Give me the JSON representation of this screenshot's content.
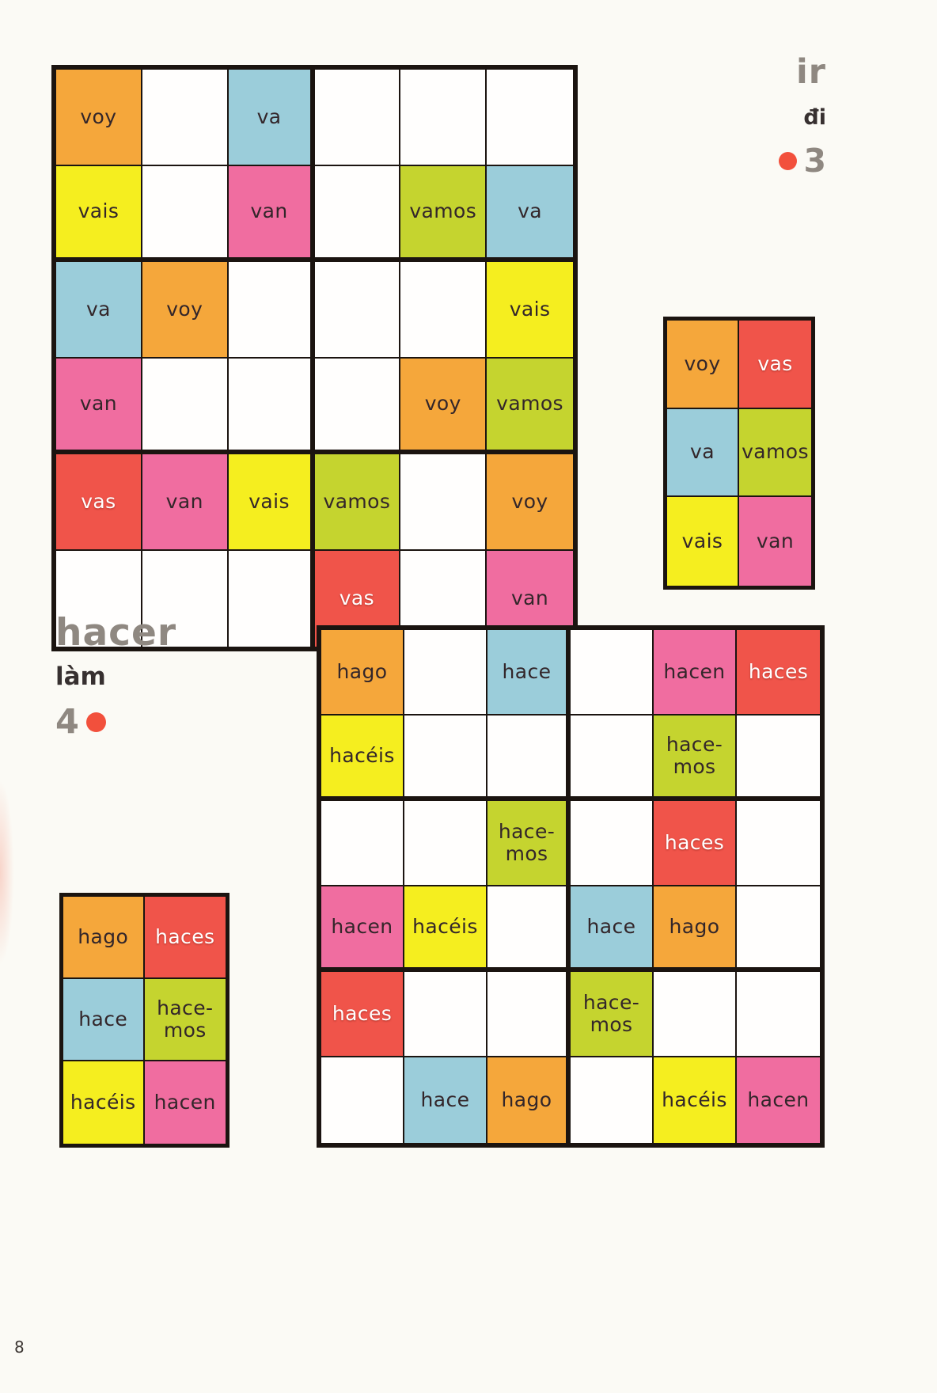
{
  "page": {
    "number": "8"
  },
  "colors": {
    "orange": "#f5a73b",
    "yellow": "#f5ee1f",
    "blue": "#9bcdda",
    "pink": "#f06da0",
    "green": "#c5d42f",
    "red": "#f0544a",
    "ink": "#33262a",
    "title_gray": "#8f8881",
    "dot_red": "#f2503c",
    "border": "#1b1410"
  },
  "ir": {
    "title": "ir",
    "translation": "đi",
    "puzzle_number": "3",
    "grid": [
      [
        {
          "t": "voy",
          "c": "orange"
        },
        null,
        {
          "t": "va",
          "c": "blue"
        },
        null,
        null,
        null
      ],
      [
        {
          "t": "vais",
          "c": "yellow"
        },
        null,
        {
          "t": "van",
          "c": "pink"
        },
        null,
        {
          "t": "vamos",
          "c": "green"
        },
        {
          "t": "va",
          "c": "blue"
        }
      ],
      [
        {
          "t": "va",
          "c": "blue"
        },
        {
          "t": "voy",
          "c": "orange"
        },
        null,
        null,
        null,
        {
          "t": "vais",
          "c": "yellow"
        }
      ],
      [
        {
          "t": "van",
          "c": "pink"
        },
        null,
        null,
        null,
        {
          "t": "voy",
          "c": "orange"
        },
        {
          "t": "vamos",
          "c": "green"
        }
      ],
      [
        {
          "t": "vas",
          "c": "red"
        },
        {
          "t": "van",
          "c": "pink"
        },
        {
          "t": "vais",
          "c": "yellow"
        },
        {
          "t": "vamos",
          "c": "green"
        },
        null,
        {
          "t": "voy",
          "c": "orange"
        }
      ],
      [
        null,
        null,
        null,
        {
          "t": "vas",
          "c": "red"
        },
        null,
        {
          "t": "van",
          "c": "pink"
        }
      ]
    ],
    "key": [
      [
        {
          "t": "voy",
          "c": "orange"
        },
        {
          "t": "vas",
          "c": "red"
        }
      ],
      [
        {
          "t": "va",
          "c": "blue"
        },
        {
          "t": "vamos",
          "c": "green"
        }
      ],
      [
        {
          "t": "vais",
          "c": "yellow"
        },
        {
          "t": "van",
          "c": "pink"
        }
      ]
    ]
  },
  "hacer": {
    "title": "hacer",
    "translation": "làm",
    "puzzle_number": "4",
    "grid": [
      [
        {
          "t": "hago",
          "c": "orange"
        },
        null,
        {
          "t": "hace",
          "c": "blue"
        },
        null,
        {
          "t": "hacen",
          "c": "pink"
        },
        {
          "t": "haces",
          "c": "red"
        }
      ],
      [
        {
          "t": "hacéis",
          "c": "yellow"
        },
        null,
        null,
        null,
        {
          "t": "hace-\nmos",
          "c": "green"
        },
        null
      ],
      [
        null,
        null,
        {
          "t": "hace-\nmos",
          "c": "green"
        },
        null,
        {
          "t": "haces",
          "c": "red"
        },
        null
      ],
      [
        {
          "t": "hacen",
          "c": "pink"
        },
        {
          "t": "hacéis",
          "c": "yellow"
        },
        null,
        {
          "t": "hace",
          "c": "blue"
        },
        {
          "t": "hago",
          "c": "orange"
        },
        null
      ],
      [
        {
          "t": "haces",
          "c": "red"
        },
        null,
        null,
        {
          "t": "hace-\nmos",
          "c": "green"
        },
        null,
        null
      ],
      [
        null,
        {
          "t": "hace",
          "c": "blue"
        },
        {
          "t": "hago",
          "c": "orange"
        },
        null,
        {
          "t": "hacéis",
          "c": "yellow"
        },
        {
          "t": "hacen",
          "c": "pink"
        }
      ]
    ],
    "key": [
      [
        {
          "t": "hago",
          "c": "orange"
        },
        {
          "t": "haces",
          "c": "red"
        }
      ],
      [
        {
          "t": "hace",
          "c": "blue"
        },
        {
          "t": "hace-\nmos",
          "c": "green"
        }
      ],
      [
        {
          "t": "hacéis",
          "c": "yellow"
        },
        {
          "t": "hacen",
          "c": "pink"
        }
      ]
    ]
  }
}
